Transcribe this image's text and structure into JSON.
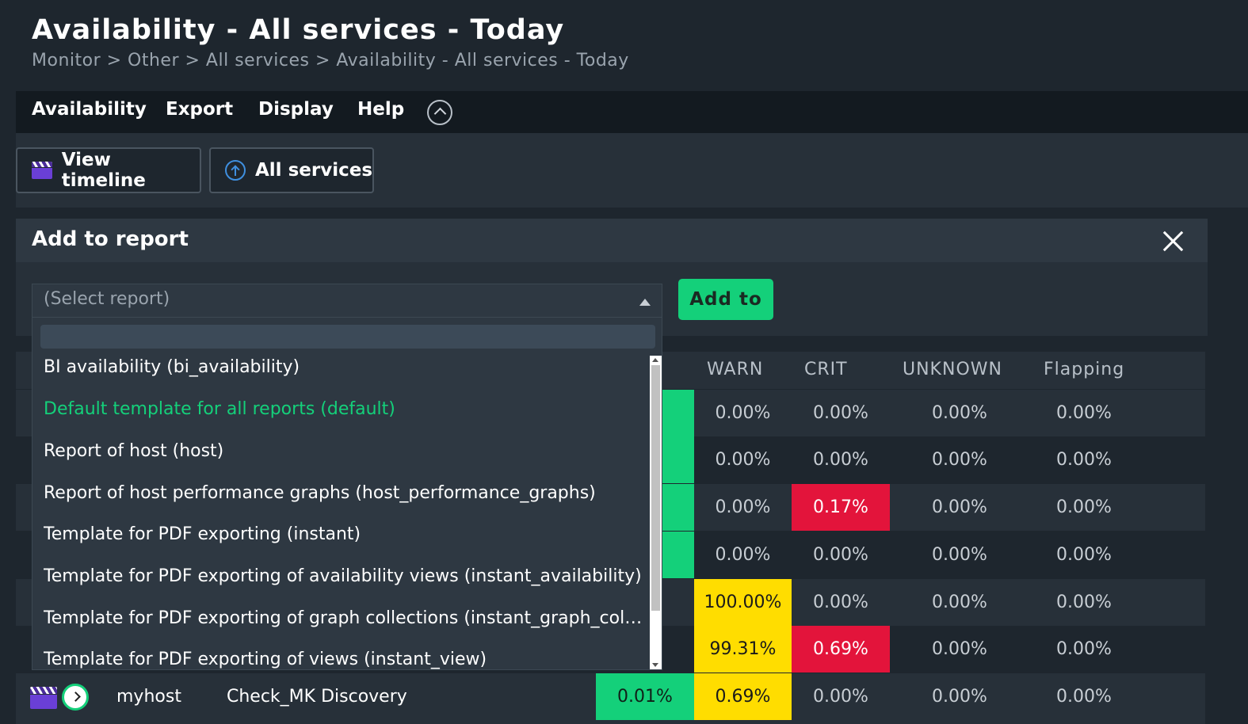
{
  "page": {
    "title": "Availability - All services - Today",
    "breadcrumb": "Monitor > Other > All services > Availability - All services - Today"
  },
  "menu": {
    "items": [
      "Availability",
      "Export",
      "Display",
      "Help"
    ]
  },
  "toolbar": {
    "view_timeline_label": "View timeline",
    "all_services_label": "All services"
  },
  "report": {
    "title": "Add to report",
    "select_placeholder": "(Select report)",
    "add_button_label": "Add to",
    "options": [
      "BI availability (bi_availability)",
      "Default template for all reports (default)",
      "Report of host (host)",
      "Report of host performance graphs (host_performance_graphs)",
      "Template for PDF exporting (instant)",
      "Template for PDF exporting of availability views (instant_availability)",
      "Template for PDF exporting of graph collections (instant_graph_collection)",
      "Template for PDF exporting of views (instant_view)"
    ],
    "selected_option": "Default template for all reports (default)"
  },
  "table": {
    "columns": [
      "WARN",
      "CRIT",
      "UNKNOWN",
      "Flapping"
    ],
    "rows": [
      {
        "ok_fragment": "%",
        "warn": "0.00%",
        "crit": "0.00%",
        "unknown": "0.00%",
        "flapping": "0.00%"
      },
      {
        "ok_fragment": "%",
        "warn": "0.00%",
        "crit": "0.00%",
        "unknown": "0.00%",
        "flapping": "0.00%"
      },
      {
        "ok_fragment": "%",
        "warn": "0.00%",
        "crit": "0.17%",
        "unknown": "0.00%",
        "flapping": "0.00%"
      },
      {
        "ok_fragment": "%",
        "warn": "0.00%",
        "crit": "0.00%",
        "unknown": "0.00%",
        "flapping": "0.00%"
      },
      {
        "ok_fragment": "%",
        "warn": "100.00%",
        "crit": "0.00%",
        "unknown": "0.00%",
        "flapping": "0.00%"
      },
      {
        "ok_fragment": "%",
        "warn": "99.31%",
        "crit": "0.69%",
        "unknown": "0.00%",
        "flapping": "0.00%"
      },
      {
        "host": "myhost",
        "service": "Check_MK Discovery",
        "ok": "0.01%",
        "warn": "0.69%",
        "crit": "0.00%",
        "unknown": "0.00%",
        "flapping": "0.00%"
      }
    ]
  },
  "colors": {
    "ok": "#14d07a",
    "warn": "#ffdd00",
    "crit": "#e3143b",
    "background": "#1e262e"
  },
  "icons": [
    "clapperboard-icon",
    "up-arrow-circle-icon",
    "close-icon",
    "stopwatch-icon",
    "chevron-up-icon"
  ]
}
